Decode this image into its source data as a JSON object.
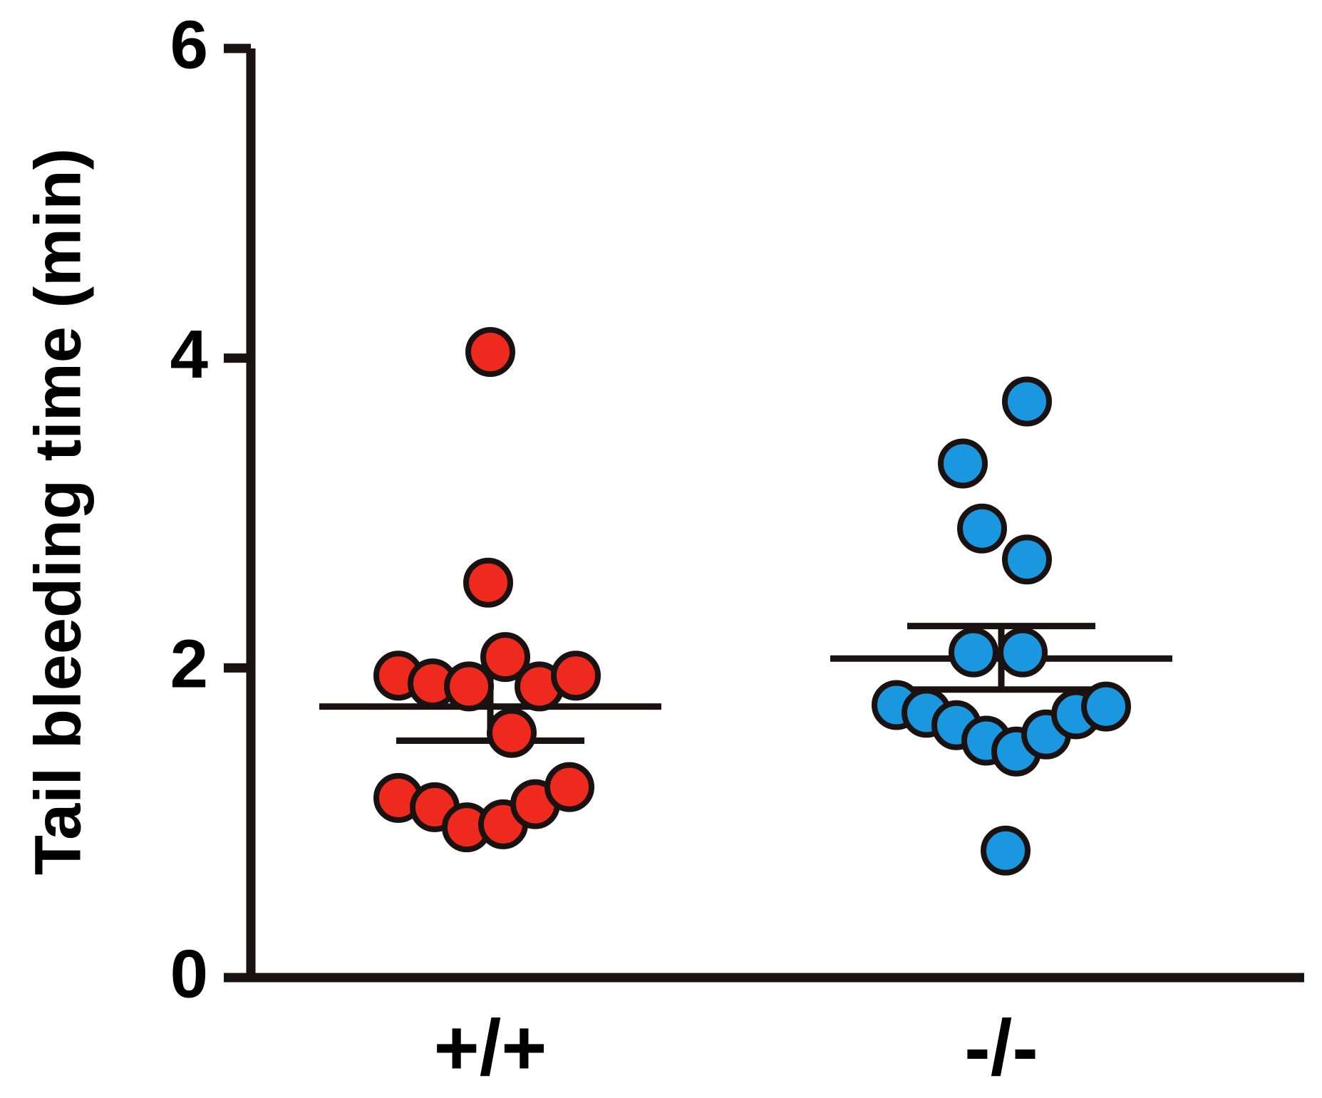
{
  "chart_data": {
    "type": "scatter",
    "ylabel": "Tail bleeding time (min)",
    "xlabel": "",
    "ylim": [
      0,
      6
    ],
    "yticks": [
      0,
      2,
      4,
      6
    ],
    "grid": false,
    "categories": [
      "+/+",
      "-/-"
    ],
    "colors": {
      "+/+": "#ee2a1f",
      "-/-": "#1b97e0",
      "outline": "#1a1210"
    },
    "series": [
      {
        "category": "+/+",
        "values": [
          4.04,
          2.55,
          2.07,
          1.95,
          1.9,
          1.88,
          1.88,
          1.95,
          1.58,
          1.16,
          1.1,
          0.97,
          0.99,
          1.12,
          1.23
        ],
        "jitter": [
          0,
          -0.01,
          0.07,
          -0.43,
          -0.27,
          -0.1,
          0.23,
          0.4,
          0.1,
          -0.43,
          -0.26,
          -0.11,
          0.06,
          0.21,
          0.37
        ],
        "mean": 1.75,
        "sem_upper": 1.98,
        "sem_lower": 1.53
      },
      {
        "category": "-/-",
        "values": [
          3.72,
          3.32,
          2.9,
          2.7,
          2.1,
          2.1,
          1.76,
          1.71,
          1.63,
          1.53,
          1.46,
          1.57,
          1.7,
          1.75,
          0.82
        ],
        "jitter": [
          0.12,
          -0.18,
          -0.09,
          0.12,
          -0.13,
          0.1,
          -0.49,
          -0.35,
          -0.21,
          -0.07,
          0.07,
          0.21,
          0.35,
          0.49,
          0.02
        ],
        "mean": 2.06,
        "sem_upper": 2.27,
        "sem_lower": 1.86
      }
    ]
  }
}
